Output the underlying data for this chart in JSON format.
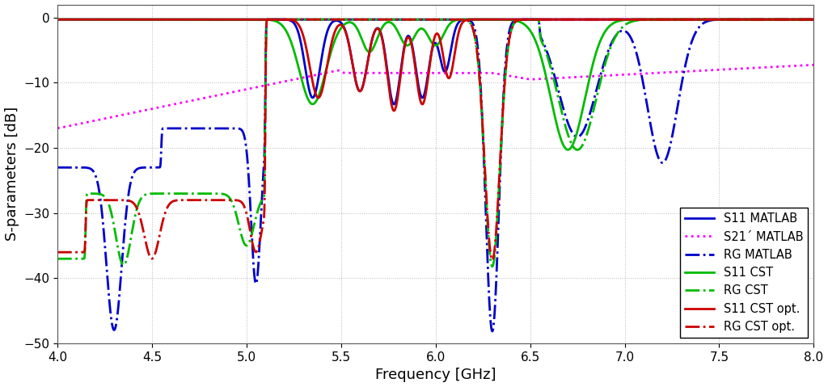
{
  "title": "",
  "xlabel": "Frequency [GHz]",
  "ylabel": "S-parameters [dB]",
  "xlim": [
    4,
    8
  ],
  "ylim": [
    -50,
    2
  ],
  "yticks": [
    0,
    -10,
    -20,
    -30,
    -40,
    -50
  ],
  "xticks": [
    4,
    4.5,
    5,
    5.5,
    6,
    6.5,
    7,
    7.5,
    8
  ],
  "bg_color": "#ffffff",
  "grid_color": "#888888",
  "legend": {
    "S11_MATLAB": {
      "label": "S11 MATLAB",
      "color": "#0000cc",
      "linestyle": "solid",
      "linewidth": 2.0
    },
    "S21_MATLAB": {
      "label": "S21´ MATLAB",
      "color": "#ff00ff",
      "linestyle": "dotted",
      "linewidth": 2.0
    },
    "RG_MATLAB": {
      "label": "RG MATLAB",
      "color": "#0000cc",
      "linestyle": "dashdot",
      "linewidth": 2.0
    },
    "S11_CST": {
      "label": "S11 CST",
      "color": "#00bb00",
      "linestyle": "solid",
      "linewidth": 2.0
    },
    "RG_CST": {
      "label": "RG CST",
      "color": "#00bb00",
      "linestyle": "dashdot",
      "linewidth": 2.0
    },
    "S11_CST_opt": {
      "label": "S11 CST opt.",
      "color": "#cc0000",
      "linestyle": "solid",
      "linewidth": 2.0
    },
    "RG_CST_opt": {
      "label": "RG CST opt.",
      "color": "#cc0000",
      "linestyle": "dashdot",
      "linewidth": 2.0
    }
  }
}
